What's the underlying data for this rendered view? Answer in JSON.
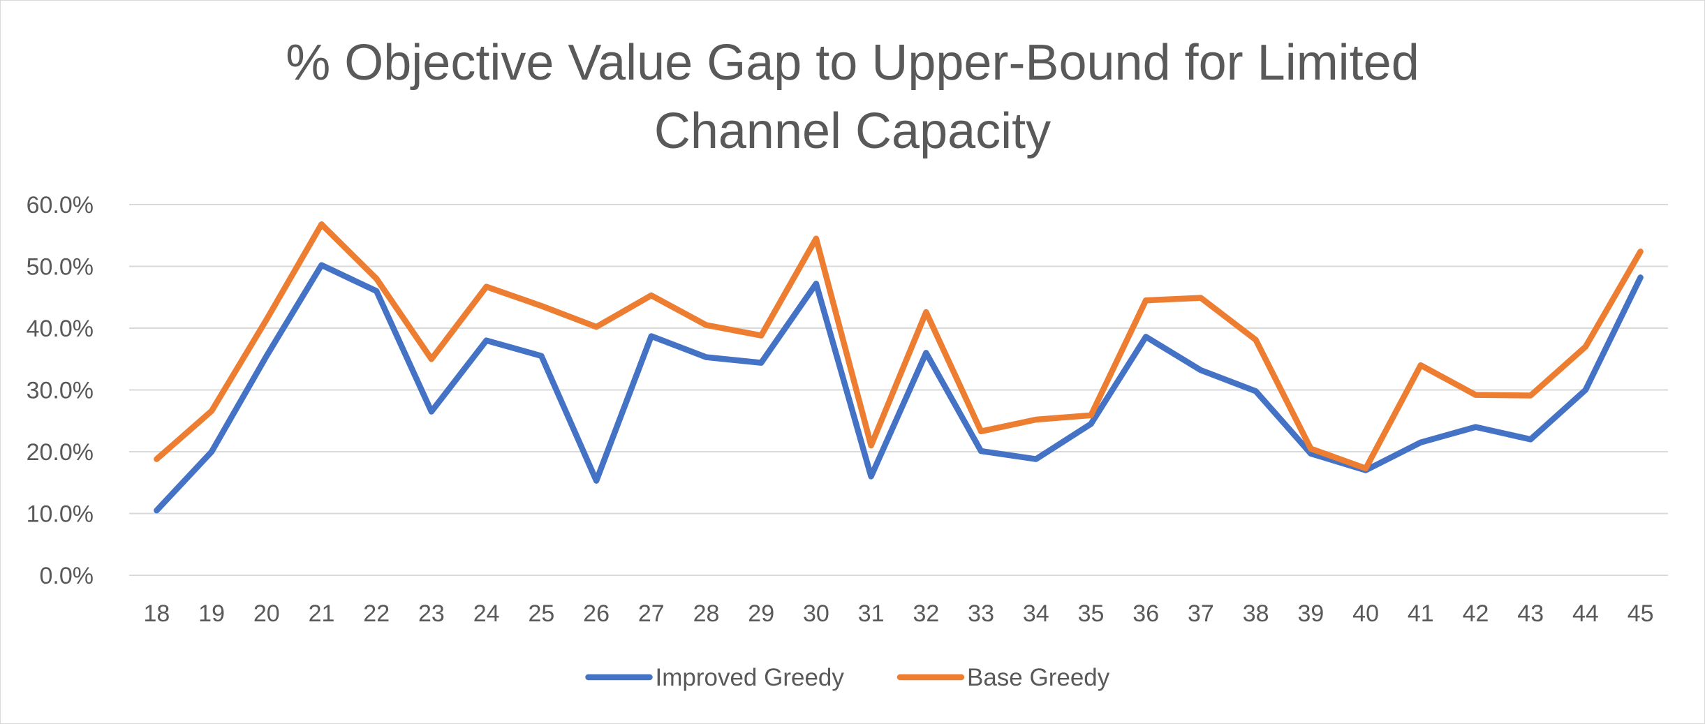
{
  "chart_data": {
    "type": "line",
    "title": "% Objective Value Gap to Upper-Bound for Limited Channel Capacity",
    "xlabel": "",
    "ylabel": "",
    "categories": [
      "18",
      "19",
      "20",
      "21",
      "22",
      "23",
      "24",
      "25",
      "26",
      "27",
      "28",
      "29",
      "30",
      "31",
      "32",
      "33",
      "34",
      "35",
      "36",
      "37",
      "38",
      "39",
      "40",
      "41",
      "42",
      "43",
      "44",
      "45"
    ],
    "ylim": [
      0,
      60
    ],
    "y_ticks": [
      "0.0%",
      "10.0%",
      "20.0%",
      "30.0%",
      "40.0%",
      "50.0%",
      "60.0%"
    ],
    "y_tick_values": [
      0,
      10,
      20,
      30,
      40,
      50,
      60
    ],
    "grid": true,
    "legend_position": "bottom",
    "series": [
      {
        "name": "Improved Greedy",
        "color": "#4472C4",
        "values": [
          10.5,
          20.0,
          35.5,
          50.2,
          46.0,
          26.5,
          38.0,
          35.5,
          15.3,
          38.7,
          35.3,
          34.4,
          47.2,
          16.0,
          36.0,
          20.1,
          18.8,
          24.5,
          38.6,
          33.2,
          29.8,
          19.7,
          17.0,
          21.5,
          24.0,
          22.0,
          30.0,
          48.2
        ]
      },
      {
        "name": "Base Greedy",
        "color": "#ED7D31",
        "values": [
          18.8,
          26.6,
          41.4,
          56.8,
          48.0,
          35.0,
          46.7,
          43.6,
          40.2,
          45.3,
          40.5,
          38.8,
          54.5,
          21.0,
          42.6,
          23.3,
          25.2,
          25.9,
          44.5,
          44.9,
          38.1,
          20.5,
          17.3,
          34.0,
          29.2,
          29.1,
          37.0,
          52.4
        ]
      }
    ]
  }
}
